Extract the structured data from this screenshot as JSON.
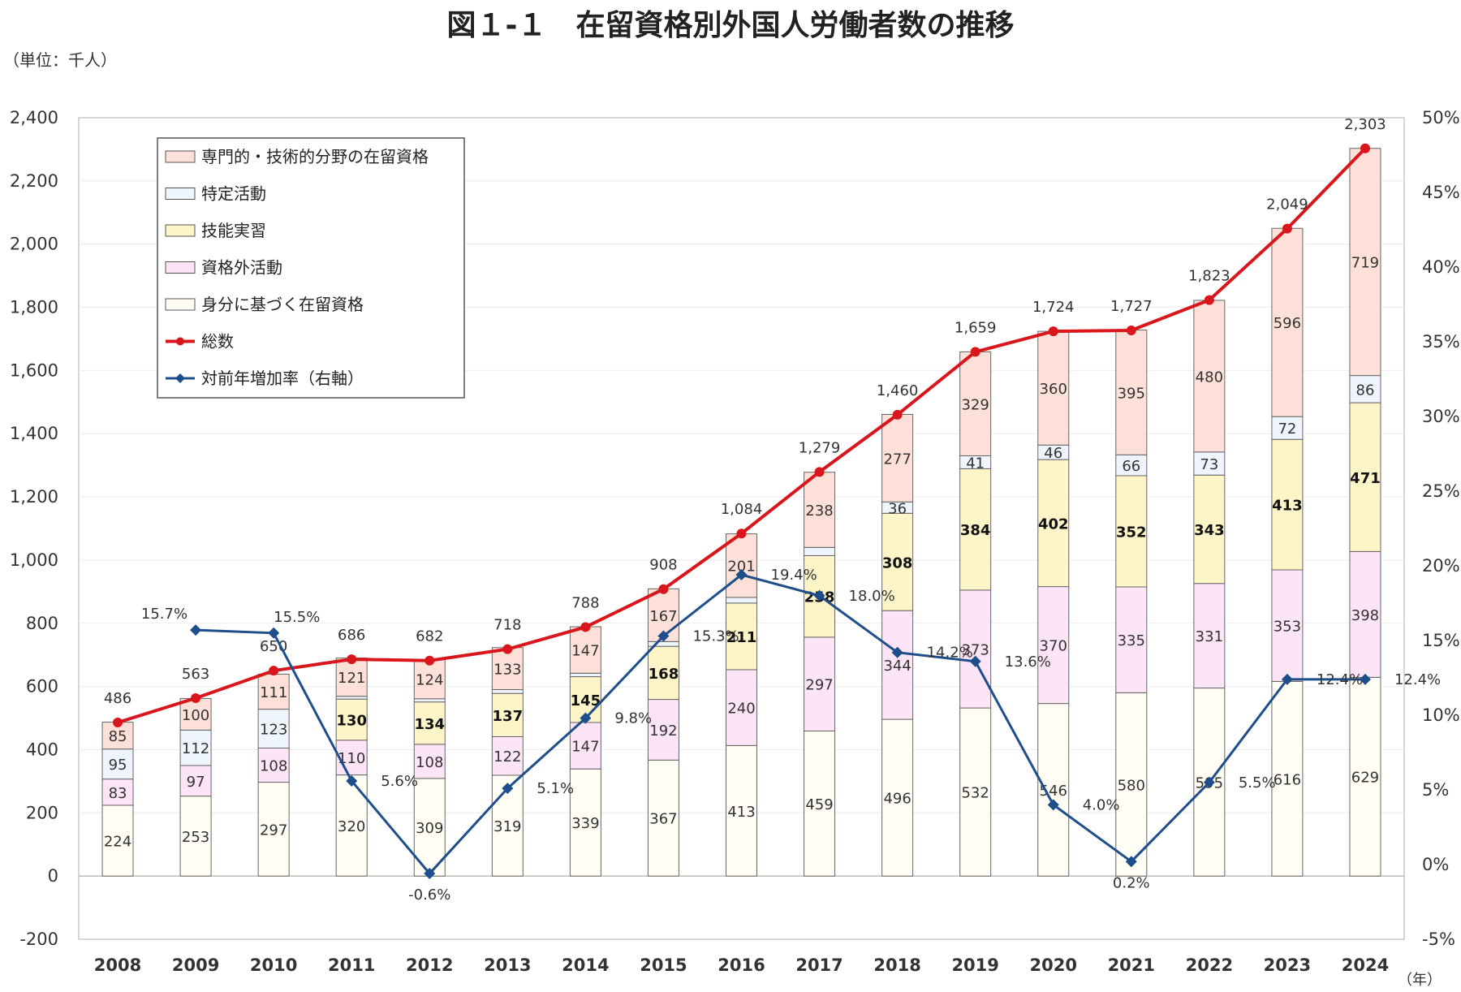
{
  "title": "図１-１　在留資格別外国人労働者数の推移",
  "unit_label": "（単位：千人）",
  "year_unit": "（年）",
  "chart_data": {
    "type": "bar",
    "stacked": true,
    "title": "図１-１　在留資格別外国人労働者数の推移",
    "ylim": [
      -200,
      2400
    ],
    "y_ticks": [
      "2,400",
      "2,200",
      "2,000",
      "1,800",
      "1,600",
      "1,400",
      "1,200",
      "1,000",
      "800",
      "600",
      "400",
      "200",
      "0",
      "-200"
    ],
    "y2lim": [
      -5,
      50
    ],
    "y2_ticks": [
      "50%",
      "45%",
      "40%",
      "35%",
      "30%",
      "25%",
      "20%",
      "15%",
      "10%",
      "5%",
      "0%",
      "-5%"
    ],
    "legend_position": "top-left",
    "categories": [
      "2008",
      "2009",
      "2010",
      "2011",
      "2012",
      "2013",
      "2014",
      "2015",
      "2016",
      "2017",
      "2018",
      "2019",
      "2020",
      "2021",
      "2022",
      "2023",
      "2024"
    ],
    "series": [
      {
        "name": "身分に基づく在留資格",
        "color": "#fffdf4",
        "values": [
          224,
          253,
          297,
          320,
          309,
          319,
          339,
          367,
          413,
          459,
          496,
          532,
          546,
          580,
          595,
          616,
          629
        ],
        "labels": [
          "224",
          "253",
          "297",
          "320",
          "309",
          "319",
          "339",
          "367",
          "413",
          "459",
          "496",
          "532",
          "546",
          "580",
          "595",
          "616",
          "629"
        ]
      },
      {
        "name": "資格外活動",
        "color": "#fde4f6",
        "values": [
          83,
          97,
          108,
          110,
          108,
          122,
          147,
          192,
          240,
          297,
          344,
          373,
          370,
          335,
          331,
          353,
          398
        ],
        "labels": [
          "83",
          "97",
          "108",
          "110",
          "108",
          "122",
          "147",
          "192",
          "240",
          "297",
          "344",
          "373",
          "370",
          "335",
          "331",
          "353",
          "398"
        ]
      },
      {
        "name": "技能実習",
        "color": "#fdf4c8",
        "values": [
          0,
          0,
          0,
          130,
          134,
          137,
          145,
          168,
          211,
          258,
          308,
          384,
          402,
          352,
          343,
          413,
          471
        ],
        "labels": [
          "",
          "",
          "",
          "130",
          "134",
          "137",
          "145",
          "168",
          "211",
          "258",
          "308",
          "384",
          "402",
          "352",
          "343",
          "413",
          "471"
        ]
      },
      {
        "name": "特定活動",
        "color": "#eef5fd",
        "values": [
          95,
          112,
          123,
          9,
          10,
          12,
          11,
          15,
          18,
          26,
          36,
          41,
          46,
          66,
          73,
          72,
          86
        ],
        "labels": [
          "95",
          "112",
          "123",
          "",
          "",
          "",
          "",
          "",
          "",
          "",
          "36",
          "41",
          "46",
          "66",
          "73",
          "72",
          "86"
        ]
      },
      {
        "name": "専門的・技術的分野の在留資格",
        "color": "#fde0d8",
        "values": [
          85,
          100,
          111,
          121,
          124,
          133,
          147,
          167,
          201,
          238,
          277,
          329,
          360,
          395,
          480,
          596,
          719
        ],
        "labels": [
          "85",
          "100",
          "111",
          "121",
          "124",
          "133",
          "147",
          "167",
          "201",
          "238",
          "277",
          "329",
          "360",
          "395",
          "480",
          "596",
          "719"
        ]
      }
    ],
    "total": {
      "name": "総数",
      "color": "#d9161c",
      "values": [
        486,
        563,
        650,
        686,
        682,
        718,
        788,
        908,
        1084,
        1279,
        1460,
        1659,
        1724,
        1727,
        1823,
        2049,
        2303
      ],
      "labels": [
        "486",
        "563",
        "650",
        "686",
        "682",
        "718",
        "788",
        "908",
        "1,084",
        "1,279",
        "1,460",
        "1,659",
        "1,724",
        "1,727",
        "1,823",
        "2,049",
        "2,303"
      ]
    },
    "growth": {
      "name": "対前年増加率（右軸）",
      "color": "#1f4e8c",
      "axis": "right",
      "values": [
        15.7,
        15.5,
        5.6,
        -0.6,
        5.1,
        9.8,
        15.3,
        19.4,
        18.0,
        14.2,
        13.6,
        4.0,
        0.2,
        5.5,
        12.4,
        12.4
      ],
      "start_index": 1,
      "labels": [
        "15.7%",
        "15.5%",
        "5.6%",
        "-0.6%",
        "5.1%",
        "9.8%",
        "15.3%",
        "19.4%",
        "18.0%",
        "14.2%",
        "13.6%",
        "4.0%",
        "0.2%",
        "5.5%",
        "12.4%",
        "12.4%"
      ]
    },
    "legend": [
      {
        "label": "専門的・技術的分野の在留資格",
        "kind": "box",
        "color": "#fde0d8"
      },
      {
        "label": "特定活動",
        "kind": "box",
        "color": "#eef5fd"
      },
      {
        "label": "技能実習",
        "kind": "box",
        "color": "#fdf4c8"
      },
      {
        "label": "資格外活動",
        "kind": "box",
        "color": "#fde4f6"
      },
      {
        "label": "身分に基づく在留資格",
        "kind": "box",
        "color": "#fffdf4"
      },
      {
        "label": "総数",
        "kind": "line",
        "color": "#d9161c"
      },
      {
        "label": "対前年増加率（右軸）",
        "kind": "line",
        "color": "#1f4e8c"
      }
    ]
  }
}
